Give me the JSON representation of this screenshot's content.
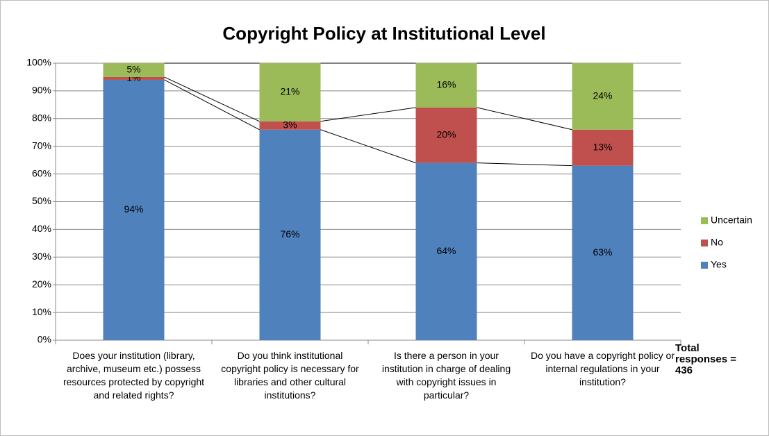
{
  "chart_data": {
    "type": "stacked_bar",
    "title": "Copyright Policy at Institutional Level",
    "categories": [
      "Does your institution (library, archive, museum etc.) possess resources protected by copyright and related rights?",
      "Do you think institutional copyright policy is necessary for libraries and other cultural institutions?",
      "Is there a person in your institution in charge of dealing with copyright issues in particular?",
      "Do you have a copyright policy or internal regulations in your institution?"
    ],
    "series": [
      {
        "name": "Yes",
        "color": "#4f81bd",
        "values": [
          94,
          76,
          64,
          63
        ],
        "value_labels": [
          "94%",
          "76%",
          "64%",
          "63%"
        ]
      },
      {
        "name": "No",
        "color": "#c0504d",
        "values": [
          1,
          3,
          20,
          13
        ],
        "value_labels": [
          "1%",
          "3%",
          "20%",
          "13%"
        ]
      },
      {
        "name": "Uncertain",
        "color": "#9bbb59",
        "values": [
          5,
          21,
          16,
          24
        ],
        "value_labels": [
          "5%",
          "21%",
          "16%",
          "24%"
        ]
      }
    ],
    "ylim": [
      0,
      100
    ],
    "yticks": [
      {
        "value": 0,
        "label": "0%"
      },
      {
        "value": 10,
        "label": "10%"
      },
      {
        "value": 20,
        "label": "20%"
      },
      {
        "value": 30,
        "label": "30%"
      },
      {
        "value": 40,
        "label": "40%"
      },
      {
        "value": 50,
        "label": "50%"
      },
      {
        "value": 60,
        "label": "60%"
      },
      {
        "value": 70,
        "label": "70%"
      },
      {
        "value": 80,
        "label": "80%"
      },
      {
        "value": 90,
        "label": "90%"
      },
      {
        "value": 100,
        "label": "100%"
      }
    ],
    "grid": true,
    "series_lines": true,
    "legend": "right",
    "annotation": "Total responses = 436"
  }
}
